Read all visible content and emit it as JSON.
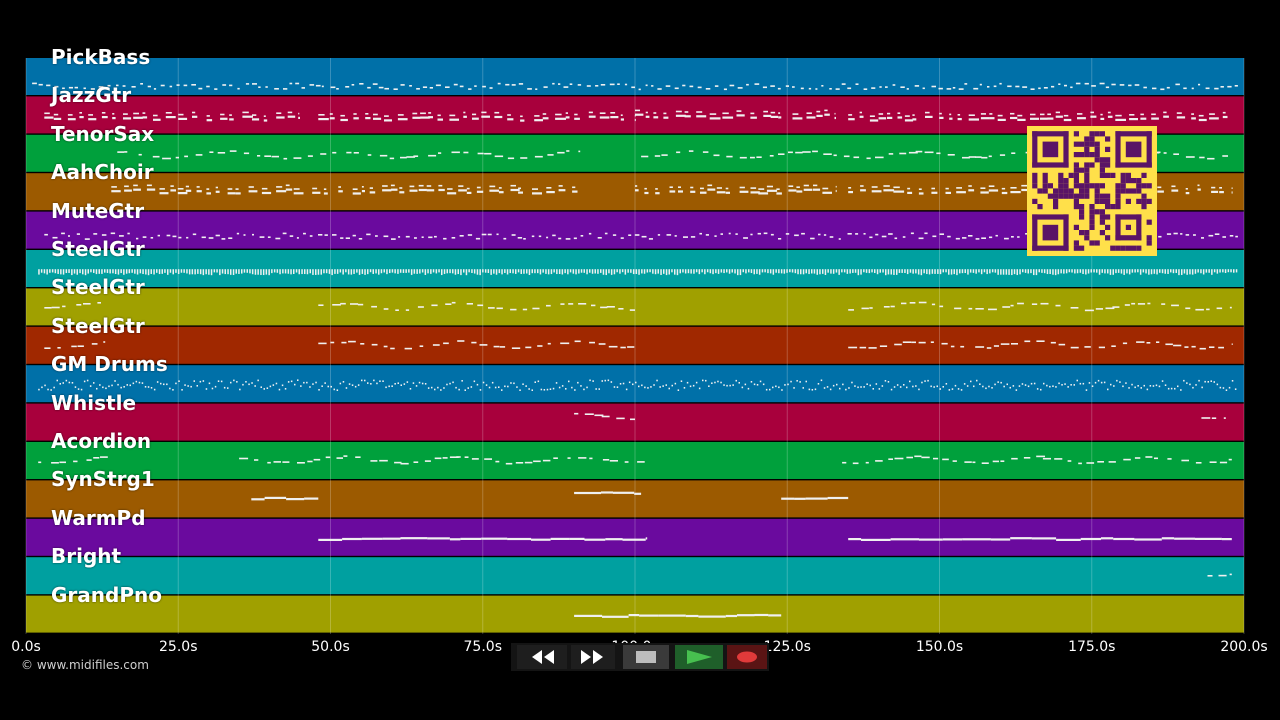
{
  "colors": {
    "blue": "#0070a8",
    "crimson": "#a8003c",
    "green": "#00a03c",
    "brown": "#9c5a00",
    "purple": "#6a0a9e",
    "teal": "#00a0a0",
    "olive": "#a0a000",
    "rust": "#a02800",
    "note": "#f0f0f0",
    "qr_bg": "#ffe04a",
    "qr_fg": "#5a1466"
  },
  "tracks": [
    {
      "label": "PickBass",
      "color": "blue",
      "notes": [
        [
          1,
          199,
          "dots",
          0.72
        ]
      ]
    },
    {
      "label": "JazzGtr",
      "color": "crimson",
      "notes": [
        [
          3,
          45,
          "chord",
          0.55
        ],
        [
          48,
          100,
          "chord",
          0.55
        ],
        [
          100,
          133,
          "chord",
          0.5
        ],
        [
          135,
          198,
          "chord",
          0.55
        ]
      ]
    },
    {
      "label": "TenorSax",
      "color": "green",
      "notes": [
        [
          15,
          91,
          "melody",
          0.5
        ],
        [
          101,
          198,
          "melody",
          0.5
        ]
      ]
    },
    {
      "label": "AahChoir",
      "color": "brown",
      "notes": [
        [
          14,
          46,
          "chord",
          0.45
        ],
        [
          47,
          91,
          "chord",
          0.45
        ],
        [
          100,
          133,
          "chord",
          0.45
        ],
        [
          135,
          198,
          "chord",
          0.45
        ]
      ]
    },
    {
      "label": "MuteGtr",
      "color": "purple",
      "notes": [
        [
          3,
          199,
          "dots",
          0.62
        ]
      ]
    },
    {
      "label": "SteelGtr",
      "color": "teal",
      "notes": [
        [
          2,
          199,
          "dense",
          0.5
        ]
      ]
    },
    {
      "label": "SteelGtr",
      "color": "olive",
      "notes": [
        [
          3,
          13,
          "melody",
          0.4
        ],
        [
          48,
          100,
          "melody",
          0.45
        ],
        [
          135,
          198,
          "melody",
          0.45
        ]
      ]
    },
    {
      "label": "SteelGtr",
      "color": "rust",
      "notes": [
        [
          3,
          13,
          "melody",
          0.45
        ],
        [
          48,
          100,
          "melody",
          0.45
        ],
        [
          135,
          198,
          "melody",
          0.45
        ]
      ]
    },
    {
      "label": "GM Drums",
      "color": "blue",
      "notes": [
        [
          2,
          199,
          "drums",
          0.5
        ]
      ]
    },
    {
      "label": "Whistle",
      "color": "crimson",
      "notes": [
        [
          90,
          100,
          "melody",
          0.3
        ],
        [
          193,
          197,
          "melody",
          0.3
        ]
      ]
    },
    {
      "label": "Acordion",
      "color": "green",
      "notes": [
        [
          2,
          14,
          "melody",
          0.45
        ],
        [
          35,
          102,
          "melody",
          0.45
        ],
        [
          134,
          198,
          "melody",
          0.45
        ]
      ]
    },
    {
      "label": "SynStrg1",
      "color": "brown",
      "notes": [
        [
          37,
          48,
          "pad",
          0.45
        ],
        [
          90,
          101,
          "pad",
          0.3
        ],
        [
          124,
          135,
          "pad",
          0.45
        ]
      ]
    },
    {
      "label": "WarmPd",
      "color": "purple",
      "notes": [
        [
          48,
          102,
          "pad",
          0.5
        ],
        [
          135,
          198,
          "pad",
          0.5
        ]
      ]
    },
    {
      "label": "Bright",
      "color": "teal",
      "notes": [
        [
          194,
          198,
          "melody",
          0.4
        ]
      ]
    },
    {
      "label": "GrandPno",
      "color": "olive",
      "notes": [
        [
          90,
          124,
          "pad",
          0.5
        ]
      ]
    }
  ],
  "time_axis": {
    "ticks": [
      "0.0s",
      "25.0s",
      "50.0s",
      "75.0s",
      "100.0s",
      "125.0s",
      "150.0s",
      "175.0s",
      "200.0s"
    ],
    "values": [
      0,
      25,
      50,
      75,
      100,
      125,
      150,
      175,
      200
    ],
    "max": 200
  },
  "copyright": "© www.midifiles.com",
  "transport": {
    "rewind": "rewind-icon",
    "fast_forward": "fast-forward-icon",
    "stop": "stop-icon",
    "play": "play-icon",
    "record": "record-icon"
  }
}
